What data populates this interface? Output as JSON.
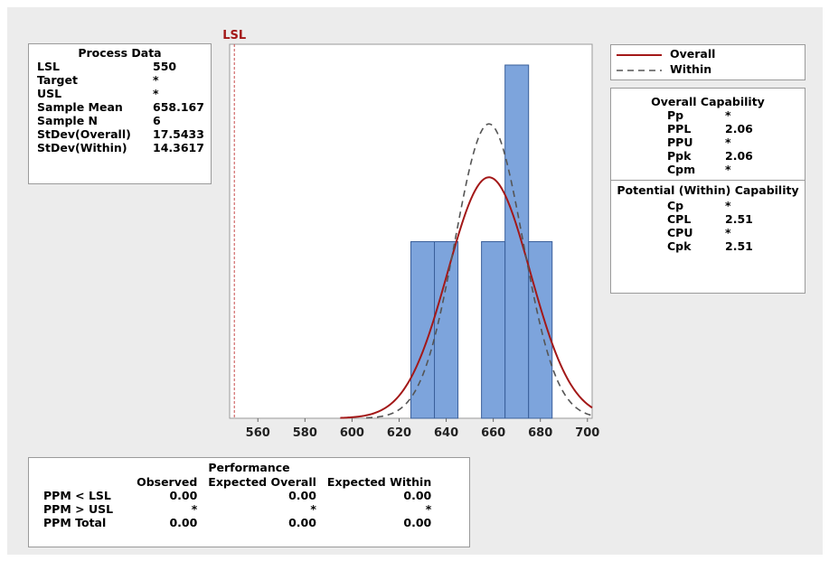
{
  "chart_data": {
    "type": "histogram",
    "title": "",
    "xlabel": "",
    "ylabel": "",
    "xlim": [
      548,
      702
    ],
    "xticks": [
      560,
      580,
      600,
      620,
      640,
      660,
      680,
      700
    ],
    "bin_width": 10,
    "bins": [
      {
        "start": 625,
        "end": 635,
        "count": 1
      },
      {
        "start": 635,
        "end": 645,
        "count": 1
      },
      {
        "start": 655,
        "end": 665,
        "count": 1
      },
      {
        "start": 665,
        "end": 675,
        "count": 2
      },
      {
        "start": 675,
        "end": 685,
        "count": 1
      }
    ],
    "lsl": {
      "label": "LSL",
      "value": 550
    },
    "curves": [
      {
        "name": "Overall",
        "style": "solid",
        "color": "#a31818",
        "mean": 658.167,
        "sd": 17.5433
      },
      {
        "name": "Within",
        "style": "dashed",
        "color": "#555555",
        "mean": 658.167,
        "sd": 14.3617
      }
    ],
    "bar_color": "#7da4dc",
    "bar_edge": "#3a5f9a"
  },
  "process_data": {
    "title": "Process Data",
    "rows": [
      {
        "label": "LSL",
        "value": "550"
      },
      {
        "label": "Target",
        "value": "*"
      },
      {
        "label": "USL",
        "value": "*"
      },
      {
        "label": "Sample Mean",
        "value": "658.167"
      },
      {
        "label": "Sample N",
        "value": "6"
      },
      {
        "label": "StDev(Overall)",
        "value": "17.5433"
      },
      {
        "label": "StDev(Within)",
        "value": "14.3617"
      }
    ]
  },
  "legend": {
    "items": [
      {
        "label": "Overall",
        "style": "solid",
        "color": "#a31818"
      },
      {
        "label": "Within",
        "style": "dashed",
        "color": "#555555"
      }
    ]
  },
  "overall_capability": {
    "title": "Overall Capability",
    "rows": [
      {
        "label": "Pp",
        "value": "*"
      },
      {
        "label": "PPL",
        "value": "2.06"
      },
      {
        "label": "PPU",
        "value": "*"
      },
      {
        "label": "Ppk",
        "value": "2.06"
      },
      {
        "label": "Cpm",
        "value": "*"
      }
    ]
  },
  "potential_capability": {
    "title": "Potential (Within) Capability",
    "rows": [
      {
        "label": "Cp",
        "value": "*"
      },
      {
        "label": "CPL",
        "value": "2.51"
      },
      {
        "label": "CPU",
        "value": "*"
      },
      {
        "label": "Cpk",
        "value": "2.51"
      }
    ]
  },
  "performance": {
    "title": "Performance",
    "columns": [
      "Observed",
      "Expected Overall",
      "Expected Within"
    ],
    "rows": [
      {
        "label": "PPM < LSL",
        "values": [
          "0.00",
          "0.00",
          "0.00"
        ]
      },
      {
        "label": "PPM > USL",
        "values": [
          "*",
          "*",
          "*"
        ]
      },
      {
        "label": "PPM Total",
        "values": [
          "0.00",
          "0.00",
          "0.00"
        ]
      }
    ]
  }
}
